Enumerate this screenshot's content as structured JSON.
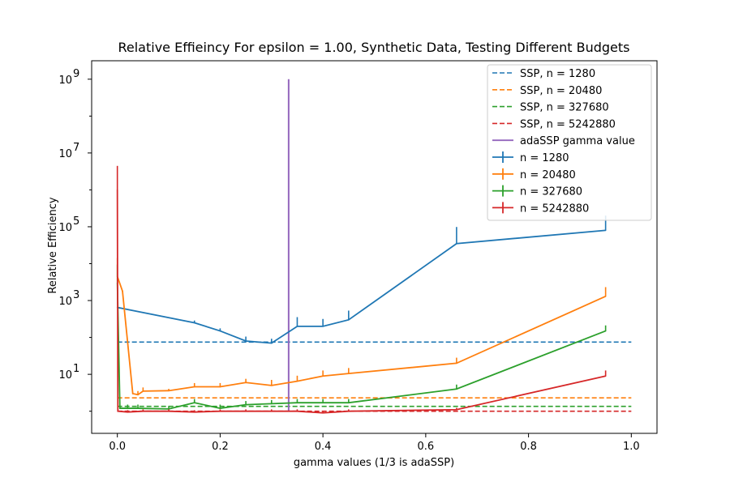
{
  "chart_data": {
    "type": "line",
    "title": "Relative Effieincy For epsilon = 1.00, Synthetic Data, Testing Different Budgets",
    "xlabel": "gamma values (1/3 is adaSSP)",
    "ylabel": "Relative Efficiency",
    "xlim": [
      -0.05,
      1.05
    ],
    "ylim_log10": [
      -0.6,
      9.5
    ],
    "y_scale": "log",
    "x_ticks": [
      0.0,
      0.2,
      0.4,
      0.6,
      0.8,
      1.0
    ],
    "x_tick_labels": [
      "0.0",
      "0.2",
      "0.4",
      "0.6",
      "0.8",
      "1.0"
    ],
    "y_ticks_log10": [
      1,
      3,
      5,
      7,
      9
    ],
    "y_tick_labels": [
      {
        "base": "10",
        "exp": "1"
      },
      {
        "base": "10",
        "exp": "3"
      },
      {
        "base": "10",
        "exp": "5"
      },
      {
        "base": "10",
        "exp": "7"
      },
      {
        "base": "10",
        "exp": "9"
      }
    ],
    "legend_position": "top-right",
    "colors": {
      "n1280": "#1f77b4",
      "n20480": "#ff7f0e",
      "n327680": "#2ca02c",
      "n5242880": "#d62728",
      "adassp": "#9467bd"
    },
    "ssp_lines": [
      {
        "name": "SSP, n = 1280",
        "color": "#1f77b4",
        "value": 75
      },
      {
        "name": "SSP, n = 20480",
        "color": "#ff7f0e",
        "value": 2.3
      },
      {
        "name": "SSP, n = 327680",
        "color": "#2ca02c",
        "value": 1.35
      },
      {
        "name": "SSP, n = 5242880",
        "color": "#d62728",
        "value": 1.0
      }
    ],
    "adassp_line": {
      "name": "adaSSP gamma value",
      "color": "#9467bd",
      "x": 0.3333,
      "y_min": 1.0,
      "y_max": 1000000000
    },
    "x": [
      0.0,
      0.001,
      0.005,
      0.01,
      0.02,
      0.03,
      0.04,
      0.05,
      0.1,
      0.15,
      0.2,
      0.25,
      0.3,
      0.35,
      0.4,
      0.45,
      0.66,
      0.95
    ],
    "series": [
      {
        "name": "n = 1280",
        "color": "#1f77b4",
        "points": [
          [
            0.0,
            650,
            0
          ],
          [
            0.15,
            250,
            0.06
          ],
          [
            0.2,
            150,
            0.07
          ],
          [
            0.25,
            80,
            0.12
          ],
          [
            0.3,
            70,
            0.12
          ],
          [
            0.35,
            200,
            0.25
          ],
          [
            0.4,
            200,
            0.2
          ],
          [
            0.45,
            300,
            0.25
          ],
          [
            0.66,
            35000,
            0.45
          ],
          [
            0.95,
            80000,
            0.4
          ]
        ]
      },
      {
        "name": "n = 20480",
        "color": "#ff7f0e",
        "points": [
          [
            0.0,
            4500,
            0.5
          ],
          [
            0.01,
            1800,
            0
          ],
          [
            0.03,
            3.0,
            0
          ],
          [
            0.04,
            2.8,
            0.1
          ],
          [
            0.05,
            3.5,
            0.1
          ],
          [
            0.1,
            3.6,
            0.05
          ],
          [
            0.15,
            4.6,
            0.1
          ],
          [
            0.2,
            4.6,
            0.1
          ],
          [
            0.25,
            6.0,
            0.1
          ],
          [
            0.3,
            5.0,
            0.15
          ],
          [
            0.35,
            6.5,
            0.15
          ],
          [
            0.4,
            9.0,
            0.15
          ],
          [
            0.45,
            10.5,
            0.15
          ],
          [
            0.66,
            20,
            0.15
          ],
          [
            0.95,
            1300,
            0.25
          ]
        ]
      },
      {
        "name": "n = 327680",
        "color": "#2ca02c",
        "points": [
          [
            0.0,
            3000,
            0.5
          ],
          [
            0.005,
            1.2,
            0
          ],
          [
            0.02,
            1.2,
            0.1
          ],
          [
            0.04,
            1.2,
            0.1
          ],
          [
            0.1,
            1.15,
            0.08
          ],
          [
            0.15,
            1.7,
            0.1
          ],
          [
            0.2,
            1.2,
            0.1
          ],
          [
            0.25,
            1.5,
            0.1
          ],
          [
            0.3,
            1.6,
            0.1
          ],
          [
            0.35,
            1.7,
            0.1
          ],
          [
            0.4,
            1.7,
            0.1
          ],
          [
            0.45,
            1.7,
            0.1
          ],
          [
            0.66,
            4.0,
            0.12
          ],
          [
            0.95,
            150,
            0.15
          ]
        ]
      },
      {
        "name": "n = 5242880",
        "color": "#d62728",
        "points": [
          [
            0.0,
            1000000,
            0.65
          ],
          [
            0.001,
            1.0,
            0
          ],
          [
            0.02,
            0.95,
            0.05
          ],
          [
            0.05,
            1.0,
            0.05
          ],
          [
            0.1,
            1.0,
            0.05
          ],
          [
            0.15,
            0.95,
            0.05
          ],
          [
            0.2,
            1.0,
            0.05
          ],
          [
            0.25,
            1.0,
            0.05
          ],
          [
            0.3,
            1.0,
            0.05
          ],
          [
            0.35,
            1.0,
            0.05
          ],
          [
            0.4,
            0.9,
            0.05
          ],
          [
            0.45,
            1.0,
            0.05
          ],
          [
            0.66,
            1.1,
            0.05
          ],
          [
            0.95,
            9.0,
            0.15
          ]
        ]
      }
    ],
    "legend": [
      {
        "label": "SSP, n = 1280",
        "color": "#1f77b4",
        "style": "dashed"
      },
      {
        "label": "SSP, n = 20480",
        "color": "#ff7f0e",
        "style": "dashed"
      },
      {
        "label": "SSP, n = 327680",
        "color": "#2ca02c",
        "style": "dashed"
      },
      {
        "label": "SSP, n = 5242880",
        "color": "#d62728",
        "style": "dashed"
      },
      {
        "label": "adaSSP gamma value",
        "color": "#9467bd",
        "style": "solid"
      },
      {
        "label": "n = 1280",
        "color": "#1f77b4",
        "style": "errorbar"
      },
      {
        "label": "n = 20480",
        "color": "#ff7f0e",
        "style": "errorbar"
      },
      {
        "label": "n = 327680",
        "color": "#2ca02c",
        "style": "errorbar"
      },
      {
        "label": "n = 5242880",
        "color": "#d62728",
        "style": "errorbar"
      }
    ]
  }
}
